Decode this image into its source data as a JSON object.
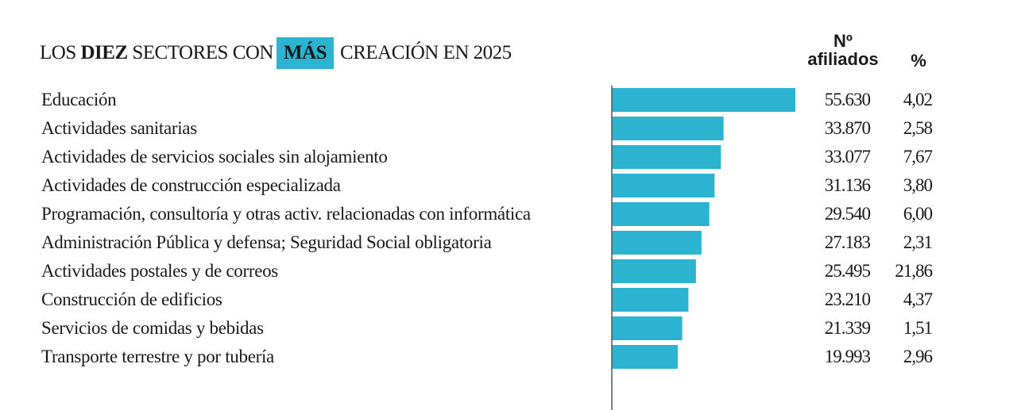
{
  "title": {
    "part1": "LOS ",
    "bold1": "DIEZ",
    "part2": " SECTORES CON",
    "highlight": "MÁS",
    "part3": "CREACIÓN EN 2025"
  },
  "headers": {
    "affiliates_line1": "Nº",
    "affiliates_line2": "afiliados",
    "percent": "%"
  },
  "colors": {
    "bar": "#2bb3cf",
    "axis": "#555555",
    "highlight": "#2bb3cf"
  },
  "rows": [
    {
      "label": "Educación",
      "value": "55.630",
      "pct": "4,02"
    },
    {
      "label": "Actividades sanitarias",
      "value": "33.870",
      "pct": "2,58"
    },
    {
      "label": "Actividades de servicios sociales sin alojamiento",
      "value": "33.077",
      "pct": "7,67"
    },
    {
      "label": "Actividades de construcción especializada",
      "value": "31.136",
      "pct": "3,80"
    },
    {
      "label": "Programación, consultoría y otras activ. relacionadas con informática",
      "value": "29.540",
      "pct": "6,00"
    },
    {
      "label": "Administración Pública y defensa; Seguridad Social obligatoria",
      "value": "27.183",
      "pct": "2,31"
    },
    {
      "label": "Actividades postales y de correos",
      "value": "25.495",
      "pct": "21,86"
    },
    {
      "label": "Construcción de edificios",
      "value": "23.210",
      "pct": "4,37"
    },
    {
      "label": "Servicios de comidas y bebidas",
      "value": "21.339",
      "pct": "1,51"
    },
    {
      "label": "Transporte terrestre y por tubería",
      "value": "19.993",
      "pct": "2,96"
    }
  ],
  "chart_data": {
    "type": "bar",
    "orientation": "horizontal",
    "title": "LOS DIEZ SECTORES CON MÁS CREACIÓN EN 2025",
    "categories": [
      "Educación",
      "Actividades sanitarias",
      "Actividades de servicios sociales sin alojamiento",
      "Actividades de construcción especializada",
      "Programación, consultoría y otras activ. relacionadas con informática",
      "Administración Pública y defensa; Seguridad Social obligatoria",
      "Actividades postales y de correos",
      "Construcción de edificios",
      "Servicios de comidas y bebidas",
      "Transporte terrestre y por tubería"
    ],
    "series": [
      {
        "name": "Nº afiliados",
        "values": [
          55630,
          33870,
          33077,
          31136,
          29540,
          27183,
          25495,
          23210,
          21339,
          19993
        ]
      },
      {
        "name": "%",
        "values": [
          4.02,
          2.58,
          7.67,
          3.8,
          6.0,
          2.31,
          21.86,
          4.37,
          1.51,
          2.96
        ]
      }
    ],
    "xlim": [
      0,
      55630
    ],
    "grid": false,
    "legend": "none"
  }
}
